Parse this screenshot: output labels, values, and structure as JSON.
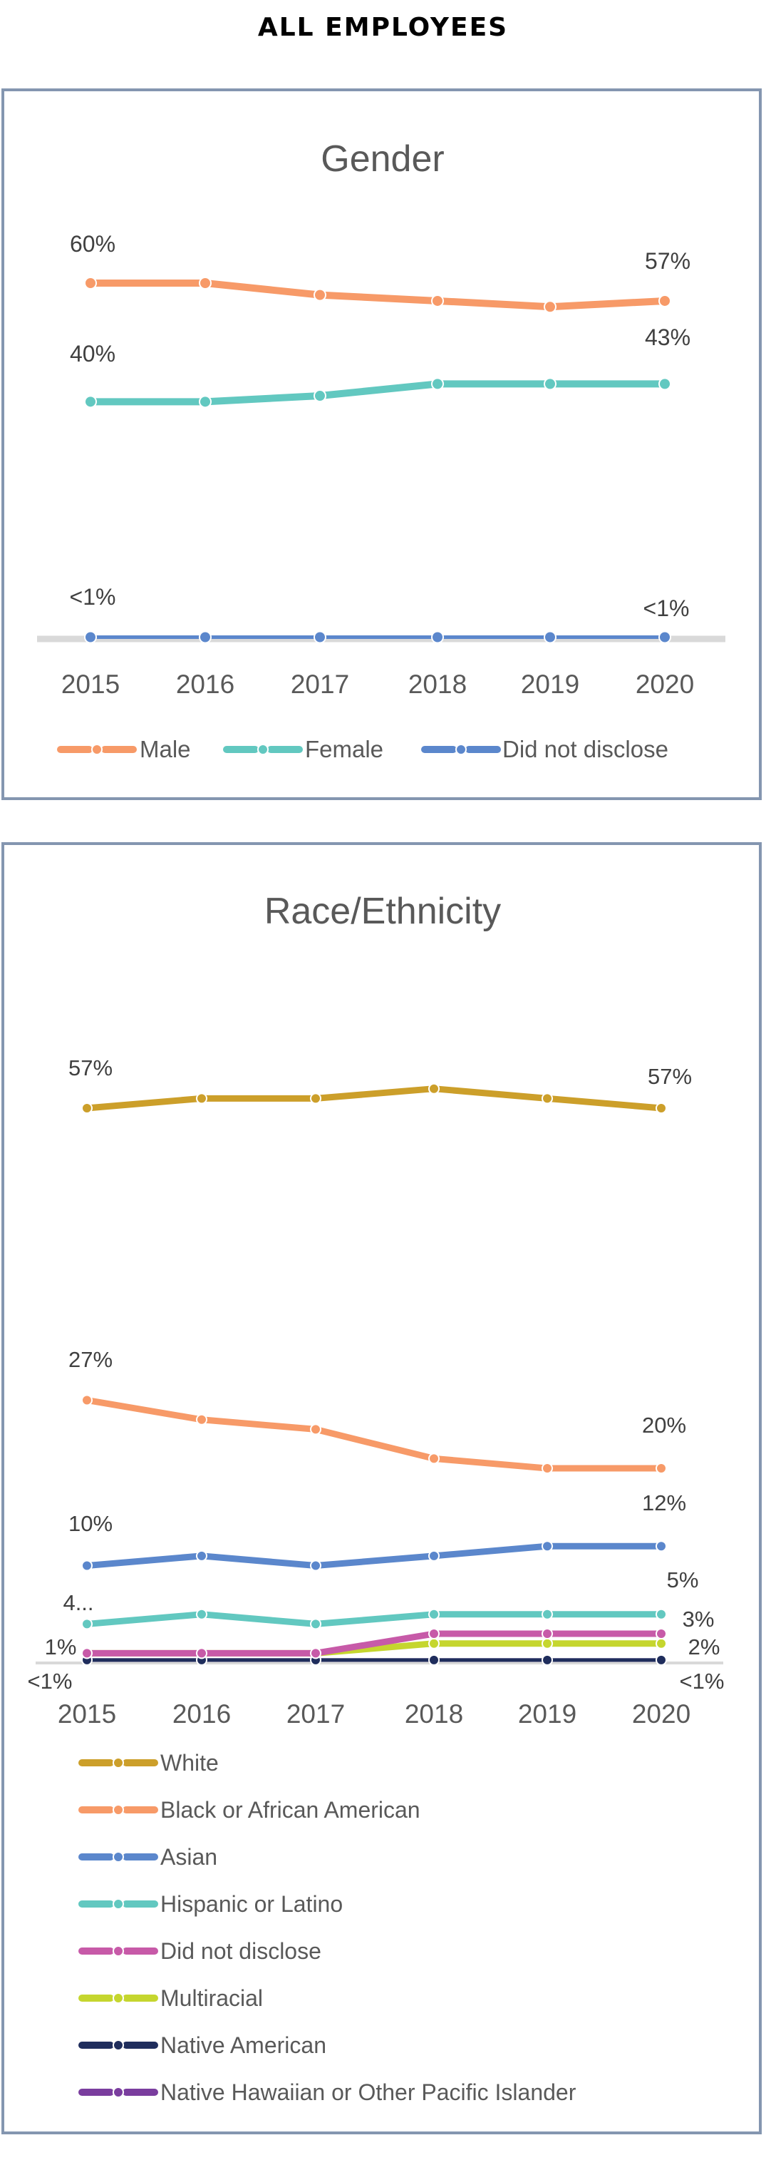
{
  "page": {
    "title": "ALL EMPLOYEES"
  },
  "chart_data": [
    {
      "type": "line",
      "title": "Gender",
      "categories": [
        "2015",
        "2016",
        "2017",
        "2018",
        "2019",
        "2020"
      ],
      "ylim": [
        0,
        60
      ],
      "grid": false,
      "legend": "bottom",
      "series": [
        {
          "name": "Male",
          "color": "#f79a68",
          "values": [
            60,
            60,
            58,
            57,
            56,
            57
          ],
          "data_labels": [
            "60%",
            "57%"
          ]
        },
        {
          "name": "Female",
          "color": "#62c8c0",
          "values": [
            40,
            40,
            41,
            43,
            43,
            43
          ],
          "data_labels": [
            "40%",
            "43%"
          ]
        },
        {
          "name": "Did not disclose",
          "color": "#5b87cc",
          "values": [
            0.3,
            0.3,
            0.3,
            0.3,
            0.3,
            0.3
          ],
          "data_labels": [
            "<1%",
            "<1%"
          ]
        }
      ]
    },
    {
      "type": "line",
      "title": "Race/Ethnicity",
      "categories": [
        "2015",
        "2016",
        "2017",
        "2018",
        "2019",
        "2020"
      ],
      "ylim": [
        0,
        60
      ],
      "grid": false,
      "legend": "bottom",
      "series": [
        {
          "name": "White",
          "color": "#cc9f2a",
          "values": [
            57,
            58,
            58,
            59,
            58,
            57
          ],
          "data_labels": [
            "57%",
            "57%"
          ]
        },
        {
          "name": "Black or African American",
          "color": "#f79a68",
          "values": [
            27,
            25,
            24,
            21,
            20,
            20
          ],
          "data_labels": [
            "27%",
            "20%"
          ]
        },
        {
          "name": "Asian",
          "color": "#5b87cc",
          "values": [
            10,
            11,
            10,
            11,
            12,
            12
          ],
          "data_labels": [
            "10%",
            "12%"
          ]
        },
        {
          "name": "Hispanic or Latino",
          "color": "#62c8c0",
          "values": [
            4,
            5,
            4,
            5,
            5,
            5
          ],
          "data_labels": [
            "4...",
            "5%"
          ]
        },
        {
          "name": "Did not disclose",
          "color": "#c75aa8",
          "values": [
            1,
            1,
            1,
            3,
            3,
            3
          ],
          "data_labels": [
            "",
            "3%"
          ]
        },
        {
          "name": "Multiracial",
          "color": "#c5d62e",
          "values": [
            1,
            1,
            1,
            2,
            2,
            2
          ],
          "data_labels": [
            "1%",
            "2%"
          ]
        },
        {
          "name": "Native American",
          "color": "#1f2d5c",
          "values": [
            0.3,
            0.3,
            0.3,
            0.3,
            0.3,
            0.3
          ],
          "data_labels": [
            "",
            ""
          ]
        },
        {
          "name": "Native Hawaiian or Other Pacific Islander",
          "color": "#7a3d9e",
          "values": [
            0.3,
            0.3,
            0.3,
            0.3,
            0.3,
            0.3
          ],
          "data_labels": [
            "<1%",
            "<1%"
          ]
        }
      ]
    }
  ]
}
